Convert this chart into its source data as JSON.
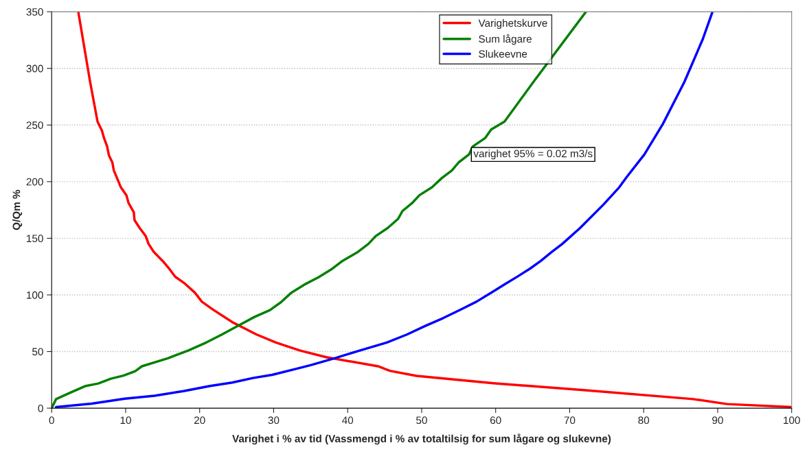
{
  "chart_data": {
    "type": "line",
    "xlabel": "Varighet i % av tid (Vassmengd i % av totaltilsig for sum lågare og slukevne)",
    "ylabel": "Q/Qm %",
    "xlim": [
      0,
      100
    ],
    "xticks": [
      0,
      10,
      20,
      30,
      40,
      50,
      60,
      70,
      80,
      90,
      100
    ],
    "ylim": [
      0,
      350
    ],
    "yticks": [
      0,
      50,
      100,
      150,
      200,
      250,
      300,
      350
    ],
    "grid": "y",
    "legend": "top",
    "line_style": "solid",
    "marker": "none",
    "annotations": [
      "varighet 95% = 0.02 m3/s"
    ],
    "series": [
      {
        "name": "Varighetskurve",
        "color": "#ff0000",
        "x": [
          3.6,
          5.2,
          6.2,
          6.8,
          7.05,
          7.5,
          7.75,
          8.2,
          8.4,
          9.35,
          10.1,
          10.4,
          11.1,
          11.2,
          11.9,
          12.7,
          13.1,
          13.8,
          15.0,
          15.9,
          16.7,
          18.0,
          19.35,
          20.3,
          21.8,
          24.4,
          27.7,
          30.3,
          33.5,
          37.1,
          44.1,
          45.7,
          49.3,
          59.7,
          71.9,
          86.7,
          91.3,
          100
        ],
        "values": [
          350,
          288,
          253,
          245,
          239,
          231,
          223,
          217,
          210,
          195,
          188,
          181,
          173,
          166,
          159,
          152,
          145,
          138,
          130,
          123,
          116,
          110,
          102,
          94,
          87,
          76,
          65,
          58,
          51,
          45,
          37,
          33,
          28.5,
          22,
          16,
          8,
          3.6,
          1
        ]
      },
      {
        "name": "Sum lågare",
        "color": "#008000",
        "x": [
          0,
          0.6,
          2.8,
          4.5,
          6.3,
          8.0,
          9.7,
          11.3,
          12.2,
          15.7,
          18.5,
          20.9,
          23.0,
          25.1,
          27.4,
          29.5,
          31.0,
          32.4,
          34.3,
          36.1,
          37.9,
          39.3,
          41.4,
          42.8,
          43.8,
          45.4,
          46.8,
          47.4,
          48.7,
          49.7,
          51.4,
          52.7,
          54.1,
          55.0,
          56.4,
          56.9,
          58.6,
          59.4,
          61.2,
          65.1,
          72.2
        ],
        "values": [
          0,
          8,
          14.5,
          19.4,
          21.8,
          26,
          28.7,
          32.7,
          37,
          44,
          51,
          58,
          65,
          72.4,
          80.5,
          86.6,
          93.6,
          102,
          109.6,
          115.7,
          123,
          130,
          138,
          145,
          152,
          159,
          167,
          174,
          181,
          188,
          195,
          203,
          210,
          217,
          224,
          231,
          238.6,
          246,
          253,
          288,
          350
        ]
      },
      {
        "name": "Slukeevne",
        "color": "#0000ff",
        "x": [
          0.6,
          5.4,
          9.9,
          13.9,
          17.8,
          21.4,
          24.4,
          27.2,
          29.8,
          32.9,
          35.0,
          38.3,
          41.7,
          45.3,
          48.0,
          50.5,
          52.9,
          55.2,
          57.4,
          59.4,
          61.3,
          63.0,
          64.6,
          66.1,
          67.6,
          69.0,
          71.4,
          74.6,
          76.7,
          77.7,
          80.1,
          82.6,
          85.5,
          88.0,
          89.3
        ],
        "values": [
          1,
          4,
          8.4,
          11,
          15,
          19.6,
          22.6,
          26.6,
          29.4,
          34.5,
          38,
          44.2,
          51,
          58,
          65,
          72.6,
          79.5,
          86.8,
          94,
          102,
          109.6,
          116.4,
          123,
          130,
          138,
          145,
          159,
          180,
          195,
          204,
          224,
          251,
          288,
          326,
          350
        ]
      }
    ]
  }
}
